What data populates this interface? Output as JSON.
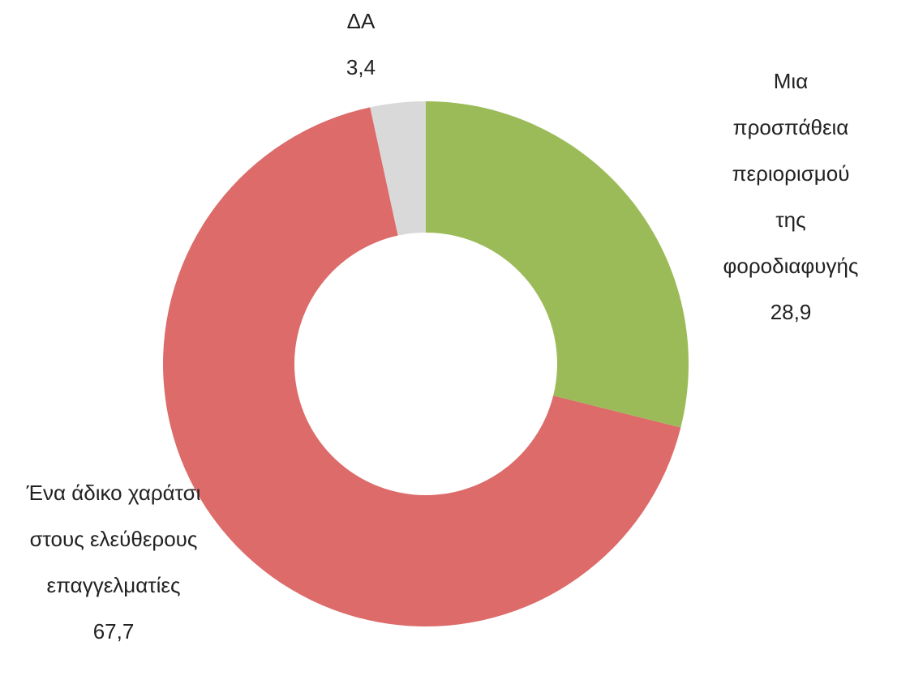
{
  "chart_data": {
    "type": "donut",
    "categories": [
      "Μια προσπάθεια περιορισμού της φοροδιαφυγής",
      "Ένα άδικο χαράτσι στους ελεύθερους επαγγελματίες",
      "ΔΑ"
    ],
    "values": [
      28.9,
      67.7,
      3.4
    ],
    "value_labels": [
      "28,9",
      "67,7",
      "3,4"
    ],
    "colors": [
      "#9bbb59",
      "#dc6b6a",
      "#d9d9d9"
    ]
  }
}
